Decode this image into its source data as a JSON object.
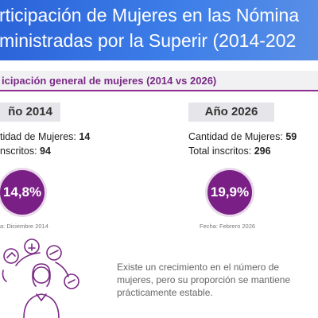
{
  "header": {
    "title_lines": [
      "rticipación de Mujeres en las Nómina",
      "ministradas por la Superir (2014-202"
    ]
  },
  "section": {
    "subtitle": "icipación general de mujeres (2014 vs 2026)"
  },
  "left": {
    "year": "ño 2014",
    "women_label": "tidad de Mujeres:",
    "women_value": "14",
    "total_label": "nscritos:",
    "total_value": "94",
    "percent": "14,8%",
    "date": "a: Diciembre 2014"
  },
  "right": {
    "year": "Año 2026",
    "women_label": "Cantidad de Mujeres:",
    "women_value": "59",
    "total_label": "Total inscritos:",
    "total_value": "296",
    "percent": "19,9%",
    "date": "Fecha: Febrero 2026"
  },
  "note": {
    "lines": [
      "Existe un crecimiento en el número de",
      "mujeres, pero su proporción se mantiene",
      "prácticamente estable."
    ]
  }
}
